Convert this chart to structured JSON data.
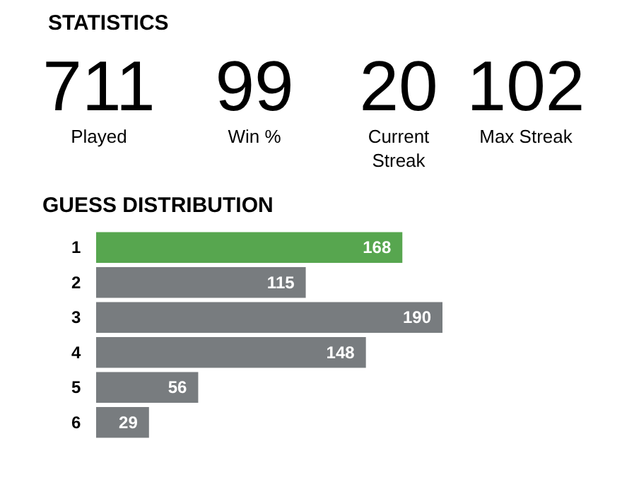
{
  "chart_data": [
    {
      "type": "other",
      "title": "STATISTICS",
      "annotations": [
        "711",
        "Played",
        "99",
        "Win %",
        "20",
        "Current Streak",
        "102",
        "Max Streak"
      ]
    },
    {
      "type": "bar",
      "orientation": "horizontal",
      "title": "GUESS DISTRIBUTION",
      "categories": [
        "1",
        "2",
        "3",
        "4",
        "5",
        "6"
      ],
      "values": [
        168,
        115,
        190,
        148,
        56,
        29
      ],
      "colors": [
        "#57a64f",
        "#787c7f",
        "#787c7f",
        "#787c7f",
        "#787c7f",
        "#787c7f"
      ],
      "data_labels": true
    }
  ]
}
